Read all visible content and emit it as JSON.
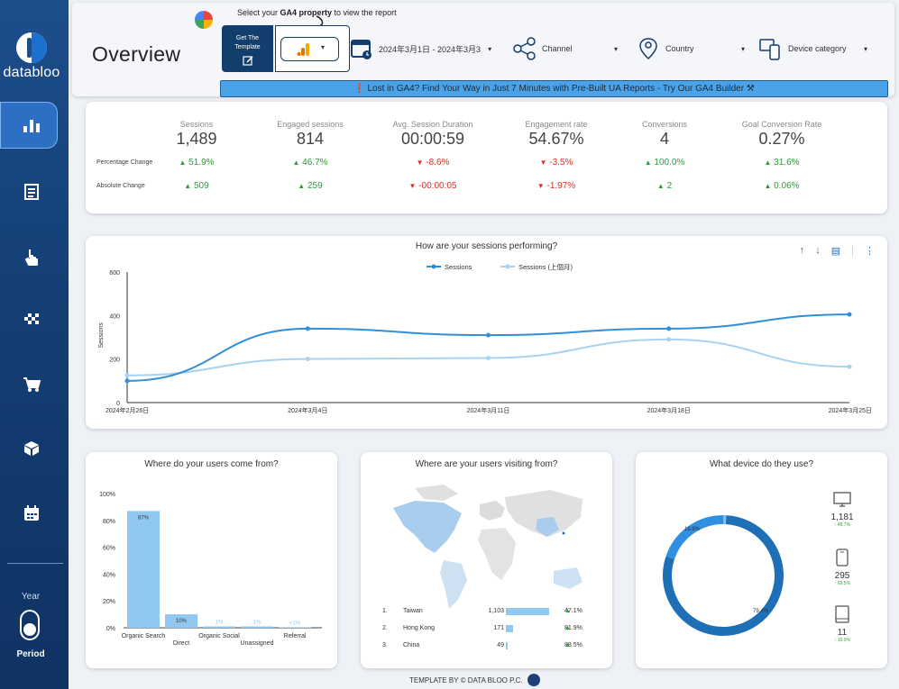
{
  "brand": {
    "name": "databloo"
  },
  "sidebar": {
    "year_label": "Year",
    "period_label": "Period",
    "items": [
      {
        "name": "bar-chart-icon"
      },
      {
        "name": "document-icon"
      },
      {
        "name": "hand-pointer-icon"
      },
      {
        "name": "checkered-flag-icon"
      },
      {
        "name": "shopping-cart-icon"
      },
      {
        "name": "box-icon"
      },
      {
        "name": "calendar-icon"
      }
    ]
  },
  "header": {
    "title": "Overview",
    "hint_prefix": "Select your ",
    "hint_bold": "GA4 property",
    "hint_suffix": " to view the report",
    "template_button": "Get The Template",
    "property_caret": "▾",
    "date_range": "2024年3月1日 - 2024年3月3",
    "filters": {
      "channel": "Channel",
      "country": "Country",
      "device": "Device category"
    },
    "banner": "❗ Lost in GA4? Find Your Way in Just 7 Minutes with Pre-Built UA Reports - Try Our GA4 Builder ⚒"
  },
  "kpis": {
    "row_pct": "Percentage Change",
    "row_abs": "Absolute Change",
    "items": [
      {
        "label": "Sessions",
        "value": "1,489",
        "pct": "51.9%",
        "abs": "509",
        "dir": "up"
      },
      {
        "label": "Engaged sessions",
        "value": "814",
        "pct": "46.7%",
        "abs": "259",
        "dir": "up"
      },
      {
        "label": "Avg. Session Duration",
        "value": "00:00:59",
        "pct": "-8.6%",
        "abs": "-00:00:05",
        "dir": "down"
      },
      {
        "label": "Engagement rate",
        "value": "54.67%",
        "pct": "-3.5%",
        "abs": "-1.97%",
        "dir": "down"
      },
      {
        "label": "Conversions",
        "value": "4",
        "pct": "100.0%",
        "abs": "2",
        "dir": "up"
      },
      {
        "label": "Goal Conversion Rate",
        "value": "0.27%",
        "pct": "31.6%",
        "abs": "0.06%",
        "dir": "up"
      }
    ]
  },
  "chart_data": [
    {
      "type": "line",
      "title": "How are your sessions performing?",
      "ylabel": "Sessions",
      "ylim": [
        0,
        600
      ],
      "yticks": [
        "0",
        "200",
        "400",
        "600"
      ],
      "x": [
        "2024年2月26日",
        "2024年3月4日",
        "2024年3月11日",
        "2024年3月18日",
        "2024年3月25日"
      ],
      "series": [
        {
          "name": "Sessions",
          "values": [
            100,
            340,
            310,
            340,
            405
          ],
          "color": "#2f8fd8"
        },
        {
          "name": "Sessions (上個月)",
          "values": [
            125,
            200,
            205,
            290,
            165
          ],
          "color": "#a9d2f0"
        }
      ],
      "legend": "top-center"
    },
    {
      "type": "bar",
      "title": "Where do your users come from?",
      "categories": [
        "Organic Search",
        "Direct",
        "Organic Social",
        "Unassigned",
        "Referral"
      ],
      "values": [
        87,
        10,
        1,
        1,
        0.3
      ],
      "data_labels": [
        "87%",
        "10%",
        "1%",
        "1%",
        "<1%"
      ],
      "ylim": [
        0,
        100
      ],
      "yticks": [
        "0%",
        "20%",
        "40%",
        "60%",
        "80%",
        "100%"
      ],
      "color": "#90c8f0"
    },
    {
      "type": "pie",
      "title": "What device do they use?",
      "slices": [
        {
          "label": "79.4%",
          "value": 79.4,
          "color": "#1e6fb5"
        },
        {
          "label": "19.8%",
          "value": 19.8,
          "color": "#2f8fe0"
        },
        {
          "label": "",
          "value": 0.8,
          "color": "#7fbdf0"
        }
      ]
    }
  ],
  "toolbar": {
    "up": "↑",
    "down": "↓",
    "more": "⋮"
  },
  "geo": {
    "title": "Where are your users visiting from?",
    "rows": [
      {
        "rank": "1.",
        "country": "Taiwan",
        "users": "1,103",
        "share": 0.95,
        "pct": "47.1%"
      },
      {
        "rank": "2.",
        "country": "Hong Kong",
        "users": "171",
        "share": 0.15,
        "pct": "81.9%"
      },
      {
        "rank": "3.",
        "country": "China",
        "users": "49",
        "share": 0.04,
        "pct": "88.5%"
      }
    ]
  },
  "devices": [
    {
      "icon": "desktop-icon",
      "value": "1,181",
      "change": "↑ 48.7%"
    },
    {
      "icon": "mobile-icon",
      "value": "295",
      "change": "↑ 69.5%"
    },
    {
      "icon": "tablet-icon",
      "value": "11",
      "change": "↑ 10.0%"
    }
  ],
  "footer": {
    "text": "TEMPLATE BY © DATA BLOO P.C."
  },
  "colors": {
    "sidebar": "#1d4e8c",
    "accent": "#2f8fd8",
    "up": "#2e9a3a",
    "down": "#d93025",
    "banner": "#4aa3e8"
  }
}
